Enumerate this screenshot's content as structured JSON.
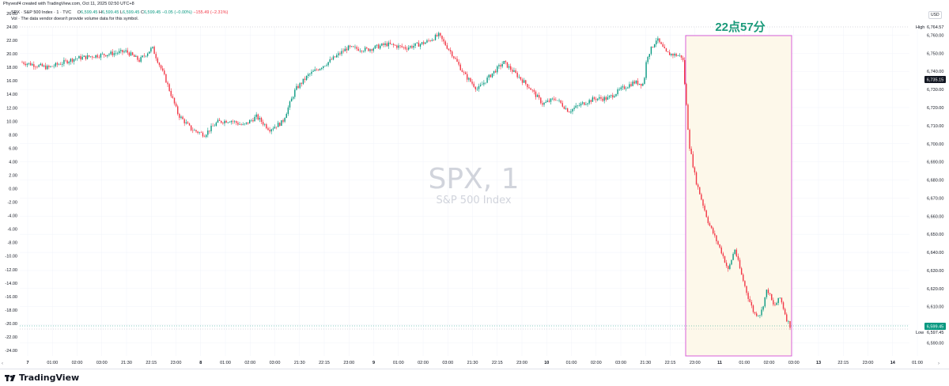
{
  "header": {
    "credit": "Phyvesf4 created with TradingView.com, Oct 11, 2025 02:50 UTC+8",
    "symbol_line": "SPX · S&P 500 Index · 1 · TVC",
    "ohlc": {
      "o_label": "O",
      "o": "6,599.45",
      "h_label": "H",
      "h": "6,599.45",
      "l_label": "L",
      "l": "6,599.45",
      "c_label": "C",
      "c": "6,599.45",
      "change": "−0.05 (−0.00%)",
      "session_change": "−155.49 (−2.31%)"
    },
    "volume_note": "Vol · The data vendor doesn't provide volume data for this symbol.",
    "currency": "USD"
  },
  "watermark": {
    "title": "SPX, 1",
    "subtitle": "S&P 500 Index"
  },
  "annotation": {
    "text": "22点57分"
  },
  "price_labels": {
    "high_tag": "High",
    "high_value": "6,764.57",
    "current_value": "6,735.15",
    "last_value": "6,599.45",
    "low_tag": "Low",
    "low_value": "6,597.45"
  },
  "footer": {
    "brand": "TradingView"
  },
  "colors": {
    "up": "#089981",
    "down": "#f23645",
    "box_border": "#d85fd8",
    "box_fill": "#fdf8ea",
    "annotation": "#1a9a7a",
    "grid": "#f0f3fa"
  },
  "chart_data": {
    "type": "candlestick",
    "title": "SPX, 1",
    "subtitle": "S&P 500 Index",
    "interval": "1",
    "left_axis": {
      "ticks": [
        "26.00",
        "24.00",
        "22.00",
        "20.00",
        "18.00",
        "16.00",
        "14.00",
        "12.00",
        "10.00",
        "8.00",
        "6.00",
        "4.00",
        "2.00",
        "0.00",
        "-2.00",
        "-4.00",
        "-6.00",
        "-8.00",
        "-10.00",
        "-12.00",
        "-14.00",
        "-16.00",
        "-18.00",
        "-20.00",
        "-22.00",
        "-24.00"
      ]
    },
    "right_axis": {
      "ticks": [
        "6,760.00",
        "6,750.00",
        "6,740.00",
        "6,730.00",
        "6,720.00",
        "6,710.00",
        "6,700.00",
        "6,690.00",
        "6,680.00",
        "6,670.00",
        "6,660.00",
        "6,650.00",
        "6,640.00",
        "6,630.00",
        "6,620.00",
        "6,610.00",
        "6,600.00",
        "6,590.00"
      ]
    },
    "x_axis": {
      "ticks": [
        "7",
        "01:00",
        "02:00",
        "03:00",
        "21:30",
        "22:15",
        "23:00",
        "8",
        "01:00",
        "02:00",
        "03:00",
        "21:30",
        "22:15",
        "23:00",
        "9",
        "01:00",
        "02:00",
        "03:00",
        "21:30",
        "22:15",
        "23:00",
        "10",
        "01:00",
        "02:00",
        "03:00",
        "21:30",
        "22:15",
        "23:00",
        "11",
        "01:00",
        "02:00",
        "03:00",
        "13",
        "22:15",
        "23:00",
        "14",
        "01:00"
      ]
    },
    "ylim": [
      6585,
      6765
    ],
    "high": 6764.57,
    "low": 6597.45,
    "last": 6599.45,
    "approx_path": [
      [
        0,
        6745
      ],
      [
        0.8,
        6742
      ],
      [
        1.6,
        6747
      ],
      [
        2.4,
        6749
      ],
      [
        3.2,
        6751
      ],
      [
        3.6,
        6746
      ],
      [
        4.0,
        6753
      ],
      [
        4.4,
        6736
      ],
      [
        4.8,
        6716
      ],
      [
        5.2,
        6708
      ],
      [
        5.6,
        6705
      ],
      [
        6.0,
        6712
      ],
      [
        6.4,
        6713
      ],
      [
        6.8,
        6710
      ],
      [
        7.2,
        6715
      ],
      [
        7.6,
        6708
      ],
      [
        8.0,
        6712
      ],
      [
        8.4,
        6730
      ],
      [
        8.8,
        6738
      ],
      [
        9.4,
        6745
      ],
      [
        10.0,
        6753
      ],
      [
        10.6,
        6752
      ],
      [
        11.2,
        6755
      ],
      [
        11.8,
        6753
      ],
      [
        12.4,
        6756
      ],
      [
        12.8,
        6760
      ],
      [
        13.2,
        6750
      ],
      [
        13.6,
        6738
      ],
      [
        14.0,
        6730
      ],
      [
        14.4,
        6738
      ],
      [
        14.8,
        6745
      ],
      [
        15.2,
        6738
      ],
      [
        15.6,
        6731
      ],
      [
        16.0,
        6722
      ],
      [
        16.4,
        6725
      ],
      [
        16.8,
        6718
      ],
      [
        17.2,
        6722
      ],
      [
        17.6,
        6725
      ],
      [
        18.0,
        6725
      ],
      [
        18.4,
        6730
      ],
      [
        18.8,
        6734
      ],
      [
        19.1,
        6733
      ],
      [
        19.2,
        6748
      ],
      [
        19.5,
        6758
      ],
      [
        19.8,
        6750
      ],
      [
        20.1,
        6749
      ],
      [
        20.3,
        6748
      ],
      [
        20.5,
        6700
      ],
      [
        20.7,
        6680
      ],
      [
        20.9,
        6668
      ],
      [
        21.1,
        6656
      ],
      [
        21.3,
        6648
      ],
      [
        21.5,
        6640
      ],
      [
        21.7,
        6630
      ],
      [
        21.9,
        6642
      ],
      [
        22.1,
        6628
      ],
      [
        22.3,
        6616
      ],
      [
        22.5,
        6606
      ],
      [
        22.7,
        6606
      ],
      [
        22.9,
        6620
      ],
      [
        23.1,
        6610
      ],
      [
        23.3,
        6615
      ],
      [
        23.5,
        6603
      ],
      [
        23.6,
        6599.45
      ]
    ]
  }
}
